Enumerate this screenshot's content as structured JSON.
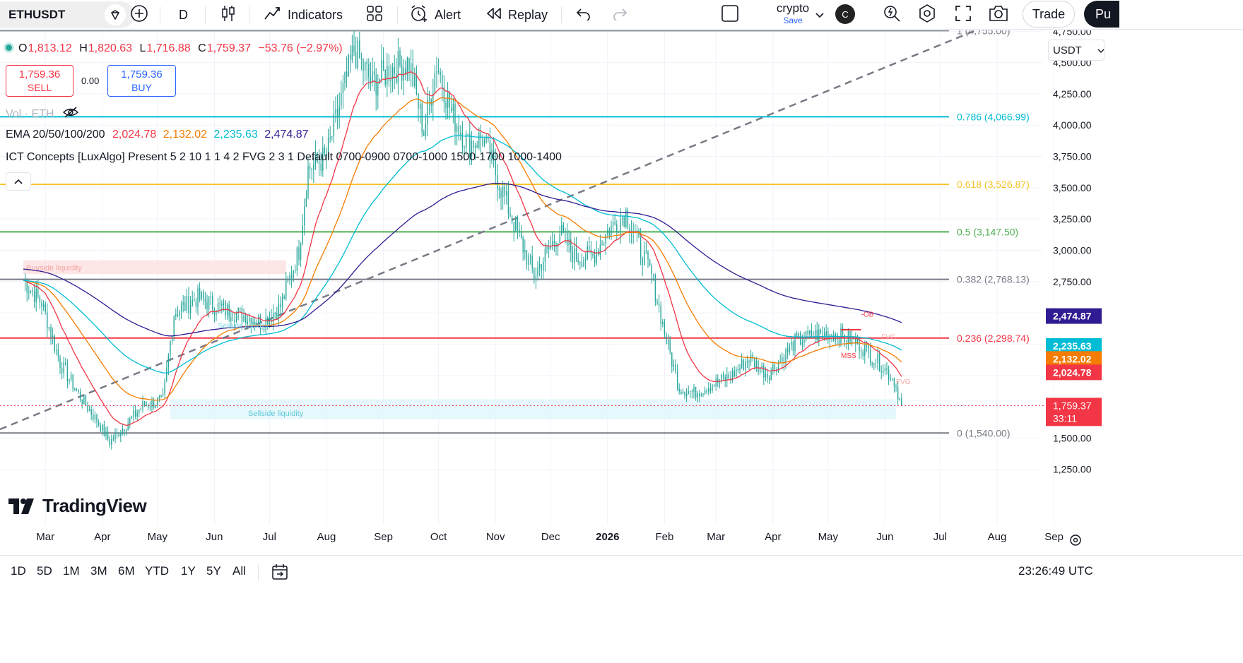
{
  "toolbar": {
    "symbol": "ETHUSDT",
    "interval": "D",
    "indicators_label": "Indicators",
    "alert_label": "Alert",
    "replay_label": "Replay",
    "layout_name": "crypto",
    "layout_save": "Save",
    "account_initial": "C",
    "trade_label": "Trade",
    "publish_label": "Pu"
  },
  "legend": {
    "ohlc": {
      "o_label": "O",
      "o": "1,813.12",
      "h_label": "H",
      "h": "1,820.63",
      "l_label": "L",
      "l": "1,716.88",
      "c_label": "C",
      "c": "1,759.37",
      "change": "−53.76 (−2.97%)"
    },
    "sell_price": "1,759.36",
    "sell_label": "SELL",
    "spread": "0.00",
    "buy_price": "1,759.36",
    "buy_label": "BUY",
    "volume_label": "Vol · ETH",
    "ema_label": "EMA 20/50/100/200",
    "ema_values": [
      "2,024.78",
      "2,132.02",
      "2,235.63",
      "2,474.87"
    ],
    "ict_label": "ICT Concepts [LuxAlgo] Present 5 2 10 1 1 4 2 FVG 2 3 1 Default 0700-0900 0700-1000 1500-1700 1000-1400"
  },
  "currency_selector": "USDT",
  "logo_text": "TradingView",
  "colors": {
    "ema20": "#f23645",
    "ema50": "#f57c00",
    "ema100": "#00bcd4",
    "ema200": "#311b92",
    "up": "#26a69a",
    "down": "#ef5350",
    "candle": "#26a69a"
  },
  "chart_data": {
    "type": "candlestick",
    "y_axis": {
      "ticks": [
        1250,
        1500,
        1750,
        2000,
        2250,
        2500,
        2750,
        3000,
        3250,
        3500,
        3750,
        4000,
        4250,
        4500,
        4750
      ],
      "tick_labels": [
        "1,250.00",
        "1,500.00",
        "",
        "",
        "",
        "",
        "2,750.00",
        "3,000.00",
        "3,250.00",
        "3,500.00",
        "3,750.00",
        "4,000.00",
        "4,250.00",
        "4,500.00",
        "4,750.00"
      ],
      "range": [
        1180,
        4985
      ]
    },
    "x_axis": {
      "labels": [
        "Mar",
        "Apr",
        "May",
        "Jun",
        "Jul",
        "Aug",
        "Sep",
        "Oct",
        "Nov",
        "Dec",
        "2026",
        "Feb",
        "Mar",
        "Apr",
        "May",
        "Jun",
        "Jul",
        "Aug",
        "Sep"
      ],
      "label_days": [
        12,
        43,
        73,
        104,
        134,
        165,
        196,
        226,
        257,
        287,
        318,
        349,
        377,
        408,
        438,
        469,
        499,
        530,
        561
      ]
    },
    "fib_levels": [
      {
        "label": "1 (4,755.00)",
        "price": 4755.0,
        "color": "#787b86"
      },
      {
        "label": "0.786 (4,066.99)",
        "price": 4066.99,
        "color": "#00bcd4"
      },
      {
        "label": "0.618 (3,526.87)",
        "price": 3526.87,
        "color": "#f7c325"
      },
      {
        "label": "0.5 (3,147.50)",
        "price": 3147.5,
        "color": "#4caf50"
      },
      {
        "label": "0.382 (2,768.13)",
        "price": 2768.13,
        "color": "#787b86"
      },
      {
        "label": "0.236 (2,298.74)",
        "price": 2298.74,
        "color": "#f23645"
      },
      {
        "label": "0 (1,540.00)",
        "price": 1540.0,
        "color": "#787b86"
      }
    ],
    "trendline": {
      "from": {
        "day": 0,
        "price": 1570
      },
      "to": {
        "day": 518,
        "price": 4755
      }
    },
    "price_tags": [
      {
        "label": "2,474.87",
        "price": 2474.87,
        "color": "#311b92"
      },
      {
        "label": "2,235.63",
        "price": 2235.63,
        "color": "#00bcd4"
      },
      {
        "label": "2,132.02",
        "price": 2132.02,
        "color": "#f57c00"
      },
      {
        "label": "2,024.78",
        "price": 2024.78,
        "color": "#f23645"
      }
    ],
    "last_price": {
      "label": "1,759.37",
      "countdown": "33:11",
      "price": 1759.37,
      "color": "#f23645"
    },
    "zones": [
      {
        "label": "Buyside liquidity",
        "day_start": 0,
        "day_end": 143,
        "price_low": 2810,
        "price_high": 2920,
        "color": "#fde0e0"
      },
      {
        "label": "Sellside liquidity",
        "day_start": 80,
        "day_end": 475,
        "price_low": 1650,
        "price_high": 1810,
        "color": "#e0f6fa"
      }
    ],
    "annotations": [
      {
        "text": "-OB",
        "day": 456,
        "price": 2470,
        "color": "#f23645"
      },
      {
        "text": "MSS",
        "day": 445,
        "price": 2140,
        "color": "#f23645"
      },
      {
        "text": "FVG",
        "day": 475,
        "price": 1930,
        "color": "#f6a5a5"
      },
      {
        "text": "FVG",
        "day": 467,
        "price": 2290,
        "color": "#f6a5a5"
      },
      {
        "text": "Sellside liquidity",
        "day": 106,
        "price": 2380,
        "color": "#7fd7e6"
      }
    ],
    "closes_anchor": [
      {
        "day": 0,
        "price": 2760
      },
      {
        "day": 10,
        "price": 2580
      },
      {
        "day": 20,
        "price": 2100
      },
      {
        "day": 30,
        "price": 1850
      },
      {
        "day": 40,
        "price": 1640
      },
      {
        "day": 47,
        "price": 1470
      },
      {
        "day": 55,
        "price": 1590
      },
      {
        "day": 65,
        "price": 1760
      },
      {
        "day": 76,
        "price": 1800
      },
      {
        "day": 82,
        "price": 2500
      },
      {
        "day": 95,
        "price": 2620
      },
      {
        "day": 110,
        "price": 2520
      },
      {
        "day": 120,
        "price": 2480
      },
      {
        "day": 130,
        "price": 2420
      },
      {
        "day": 140,
        "price": 2550
      },
      {
        "day": 150,
        "price": 3000
      },
      {
        "day": 155,
        "price": 3650
      },
      {
        "day": 165,
        "price": 3750
      },
      {
        "day": 172,
        "price": 4150
      },
      {
        "day": 180,
        "price": 4600
      },
      {
        "day": 190,
        "price": 4330
      },
      {
        "day": 200,
        "price": 4450
      },
      {
        "day": 210,
        "price": 4500
      },
      {
        "day": 218,
        "price": 3950
      },
      {
        "day": 225,
        "price": 4500
      },
      {
        "day": 233,
        "price": 4100
      },
      {
        "day": 242,
        "price": 3850
      },
      {
        "day": 250,
        "price": 3900
      },
      {
        "day": 260,
        "price": 3500
      },
      {
        "day": 270,
        "price": 3100
      },
      {
        "day": 278,
        "price": 2800
      },
      {
        "day": 285,
        "price": 2980
      },
      {
        "day": 292,
        "price": 3150
      },
      {
        "day": 300,
        "price": 2950
      },
      {
        "day": 310,
        "price": 2950
      },
      {
        "day": 318,
        "price": 3150
      },
      {
        "day": 328,
        "price": 3300
      },
      {
        "day": 336,
        "price": 3000
      },
      {
        "day": 342,
        "price": 2800
      },
      {
        "day": 350,
        "price": 2280
      },
      {
        "day": 357,
        "price": 1900
      },
      {
        "day": 365,
        "price": 1860
      },
      {
        "day": 375,
        "price": 1930
      },
      {
        "day": 385,
        "price": 1990
      },
      {
        "day": 395,
        "price": 2140
      },
      {
        "day": 405,
        "price": 2010
      },
      {
        "day": 412,
        "price": 2120
      },
      {
        "day": 420,
        "price": 2270
      },
      {
        "day": 430,
        "price": 2320
      },
      {
        "day": 440,
        "price": 2340
      },
      {
        "day": 448,
        "price": 2300
      },
      {
        "day": 455,
        "price": 2250
      },
      {
        "day": 462,
        "price": 2150
      },
      {
        "day": 468,
        "price": 2070
      },
      {
        "day": 474,
        "price": 1960
      },
      {
        "day": 478,
        "price": 1759.37
      }
    ]
  },
  "bottombar": {
    "ranges": [
      "1D",
      "5D",
      "1M",
      "3M",
      "6M",
      "YTD",
      "1Y",
      "5Y",
      "All"
    ],
    "clock": "23:26:49 UTC"
  }
}
